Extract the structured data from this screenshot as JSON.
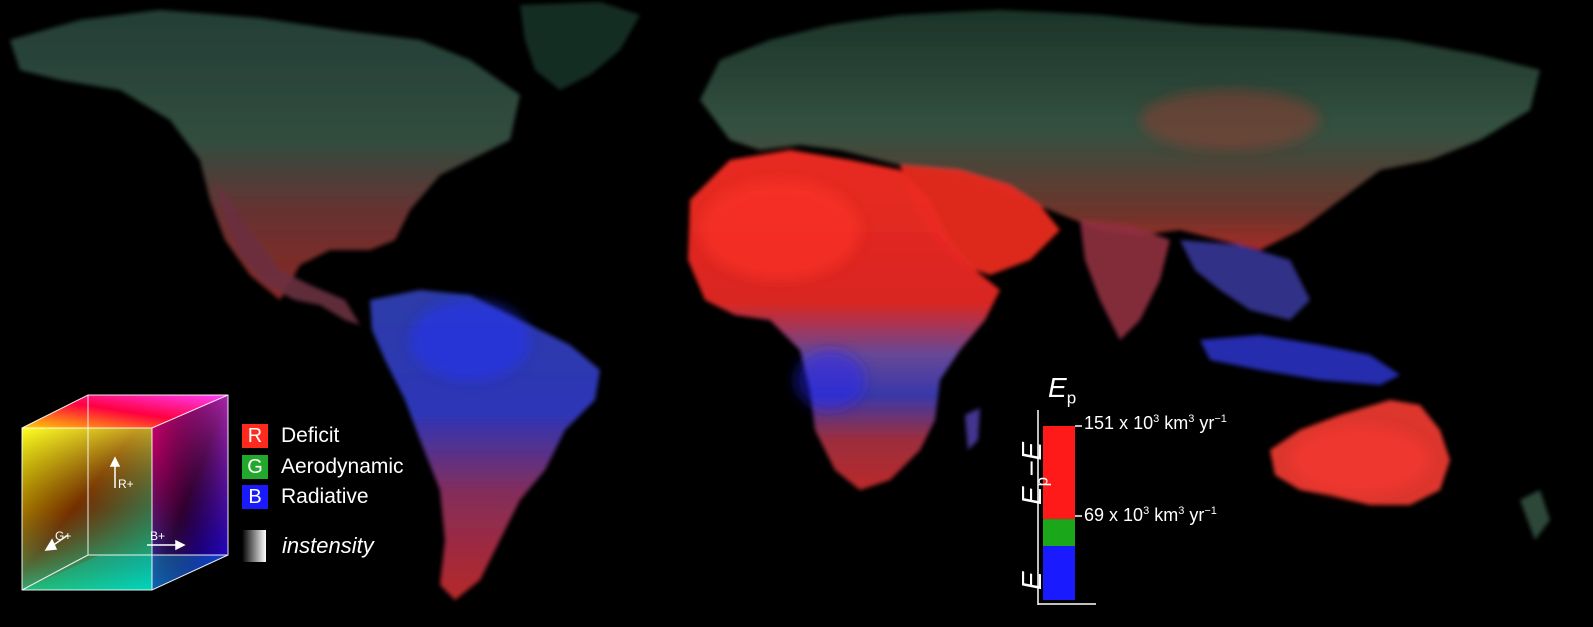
{
  "legend": {
    "channels": [
      {
        "letter": "R",
        "label": "Deficit",
        "color": "#ff2a1e"
      },
      {
        "letter": "G",
        "label": "Aerodynamic",
        "color": "#22a82a"
      },
      {
        "letter": "B",
        "label": "Radiative",
        "color": "#1a1aff"
      }
    ],
    "intensity_label": "instensity",
    "cube_axes": {
      "r": "R+",
      "g": "G+",
      "b": "B+"
    }
  },
  "colorbar": {
    "title_main": "E",
    "title_main_sub": "p",
    "side_e": "E",
    "side_ep_minus_e": {
      "e": "E",
      "sub": "p",
      "minus": "−E"
    },
    "top_value": "151",
    "top_unit_prefix": "x 10",
    "top_exp": "3",
    "top_unit": " km",
    "top_unit_exp": "3",
    "top_rate": " yr",
    "top_rate_exp": "−1",
    "mid_value": "69",
    "mid_unit_prefix": "x 10",
    "mid_exp": "3",
    "mid_unit": " km",
    "mid_unit_exp": "3",
    "mid_rate": " yr",
    "mid_rate_exp": "−1",
    "segments": [
      {
        "name": "deficit",
        "color": "#ff1a1a",
        "fraction": 0.535
      },
      {
        "name": "aerodynamic",
        "color": "#1aa81a",
        "fraction": 0.155
      },
      {
        "name": "radiative",
        "color": "#1a1aff",
        "fraction": 0.31
      }
    ]
  },
  "colors": {
    "background": "#000000",
    "deficit_region": "#e0281e",
    "aerodynamic_region": "#3a6a4a",
    "radiative_region": "#2a35b8"
  }
}
